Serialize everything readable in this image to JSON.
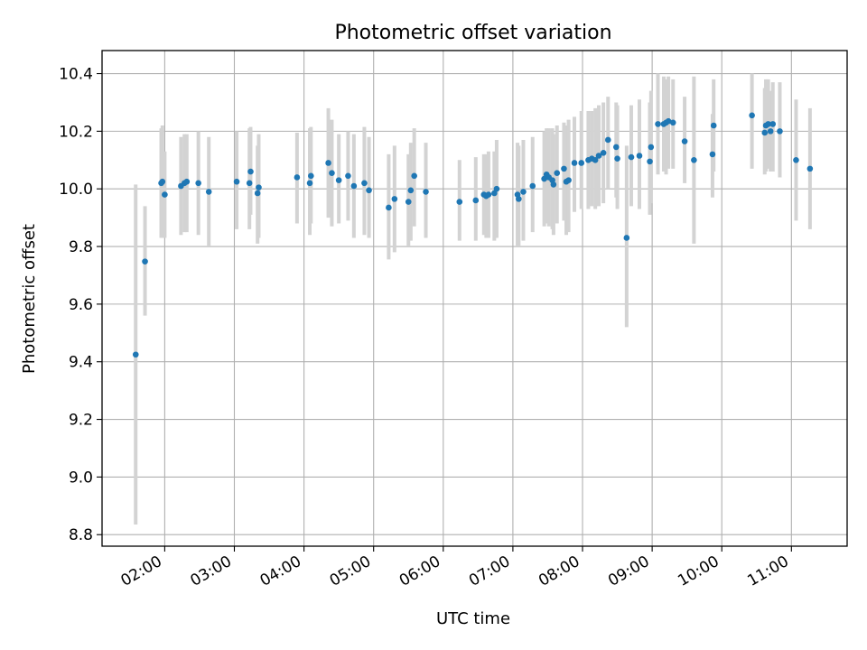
{
  "chart_data": {
    "type": "scatter",
    "title": "Photometric offset variation",
    "xlabel": "UTC time",
    "ylabel": "Photometric offset",
    "xlim": [
      "01:06",
      "11:48"
    ],
    "ylim": [
      8.76,
      10.48
    ],
    "grid": true,
    "legend": "none",
    "x_tick_labels": [
      "02:00",
      "03:00",
      "04:00",
      "05:00",
      "06:00",
      "07:00",
      "08:00",
      "09:00",
      "10:00",
      "11:00"
    ],
    "y_tick_labels": [
      "8.8",
      "9.0",
      "9.2",
      "9.4",
      "9.6",
      "9.8",
      "10.0",
      "10.2",
      "10.4"
    ],
    "y_ticks": [
      8.8,
      9.0,
      9.2,
      9.4,
      9.6,
      9.8,
      10.0,
      10.2,
      10.4
    ],
    "colors": {
      "points": "#1f77b4",
      "errorbars": "#d3d3d3",
      "grid": "#b0b0b0"
    },
    "series": [
      {
        "x": [
          "01:35",
          "01:43",
          "01:57",
          "01:58",
          "02:00",
          "02:14",
          "02:17",
          "02:19",
          "02:29",
          "02:38",
          "03:02",
          "03:13",
          "03:14",
          "03:20",
          "03:21",
          "03:54",
          "04:05",
          "04:06",
          "04:21",
          "04:24",
          "04:30",
          "04:38",
          "04:43",
          "04:52",
          "04:56",
          "05:13",
          "05:18",
          "05:30",
          "05:32",
          "05:35",
          "05:45",
          "06:14",
          "06:28",
          "06:35",
          "06:37",
          "06:39",
          "06:44",
          "06:46",
          "07:04",
          "07:05",
          "07:09",
          "07:17",
          "07:27",
          "07:29",
          "07:31",
          "07:34",
          "07:35",
          "07:38",
          "07:44",
          "07:46",
          "07:48",
          "07:53",
          "07:59",
          "08:05",
          "08:08",
          "08:11",
          "08:14",
          "08:18",
          "08:22",
          "08:29",
          "08:30",
          "08:38",
          "08:42",
          "08:49",
          "08:58",
          "08:59",
          "09:05",
          "09:10",
          "09:12",
          "09:14",
          "09:18",
          "09:28",
          "09:36",
          "09:52",
          "09:53",
          "10:26",
          "10:37",
          "10:38",
          "10:40",
          "10:42",
          "10:44",
          "10:50",
          "11:04",
          "11:16"
        ],
        "y": [
          9.425,
          9.748,
          10.02,
          10.025,
          9.98,
          10.01,
          10.02,
          10.025,
          10.02,
          9.99,
          10.025,
          10.02,
          10.06,
          9.985,
          10.005,
          10.04,
          10.02,
          10.045,
          10.09,
          10.055,
          10.03,
          10.045,
          10.01,
          10.02,
          9.995,
          9.935,
          9.965,
          9.955,
          9.995,
          10.045,
          9.99,
          9.955,
          9.96,
          9.98,
          9.975,
          9.98,
          9.985,
          10.0,
          9.98,
          9.965,
          9.99,
          10.01,
          10.035,
          10.05,
          10.04,
          10.03,
          10.015,
          10.055,
          10.07,
          10.025,
          10.03,
          10.09,
          10.09,
          10.1,
          10.105,
          10.1,
          10.115,
          10.125,
          10.17,
          10.145,
          10.105,
          9.83,
          10.11,
          10.115,
          10.095,
          10.145,
          10.225,
          10.225,
          10.23,
          10.235,
          10.23,
          10.165,
          10.1,
          10.12,
          10.22,
          10.255,
          10.195,
          10.22,
          10.225,
          10.2,
          10.225,
          10.2,
          10.1,
          10.07
        ],
        "y_low": [
          8.835,
          9.56,
          9.83,
          9.84,
          9.83,
          9.84,
          9.85,
          9.85,
          9.84,
          9.8,
          9.86,
          9.86,
          9.91,
          9.81,
          9.83,
          9.88,
          9.84,
          9.88,
          9.9,
          9.87,
          9.88,
          9.89,
          9.83,
          9.84,
          9.83,
          9.755,
          9.78,
          9.8,
          9.82,
          9.87,
          9.83,
          9.82,
          9.82,
          9.84,
          9.83,
          9.83,
          9.82,
          9.83,
          9.8,
          9.8,
          9.82,
          9.85,
          9.87,
          9.88,
          9.87,
          9.86,
          9.84,
          9.88,
          9.89,
          9.84,
          9.85,
          9.92,
          9.93,
          9.93,
          9.94,
          9.93,
          9.94,
          9.95,
          10.0,
          9.97,
          9.93,
          9.52,
          9.94,
          9.93,
          9.91,
          9.95,
          10.05,
          10.06,
          10.05,
          10.07,
          10.07,
          10.02,
          9.81,
          9.97,
          10.06,
          10.07,
          10.05,
          10.06,
          10.07,
          10.06,
          10.06,
          10.04,
          9.89,
          9.86
        ],
        "y_high": [
          10.015,
          9.94,
          10.21,
          10.22,
          10.13,
          10.18,
          10.19,
          10.19,
          10.2,
          10.18,
          10.2,
          10.21,
          10.215,
          10.15,
          10.19,
          10.195,
          10.21,
          10.215,
          10.28,
          10.24,
          10.19,
          10.2,
          10.19,
          10.215,
          10.18,
          10.12,
          10.15,
          10.12,
          10.16,
          10.21,
          10.16,
          10.1,
          10.11,
          10.12,
          10.12,
          10.13,
          10.13,
          10.17,
          10.16,
          10.15,
          10.17,
          10.18,
          10.2,
          10.21,
          10.21,
          10.21,
          10.19,
          10.22,
          10.23,
          10.22,
          10.24,
          10.25,
          10.27,
          10.27,
          10.27,
          10.28,
          10.29,
          10.3,
          10.32,
          10.3,
          10.29,
          10.15,
          10.29,
          10.31,
          10.3,
          10.34,
          10.4,
          10.39,
          10.38,
          10.39,
          10.38,
          10.32,
          10.39,
          10.26,
          10.38,
          10.4,
          10.35,
          10.38,
          10.38,
          10.34,
          10.37,
          10.37,
          10.31,
          10.28
        ]
      }
    ]
  }
}
